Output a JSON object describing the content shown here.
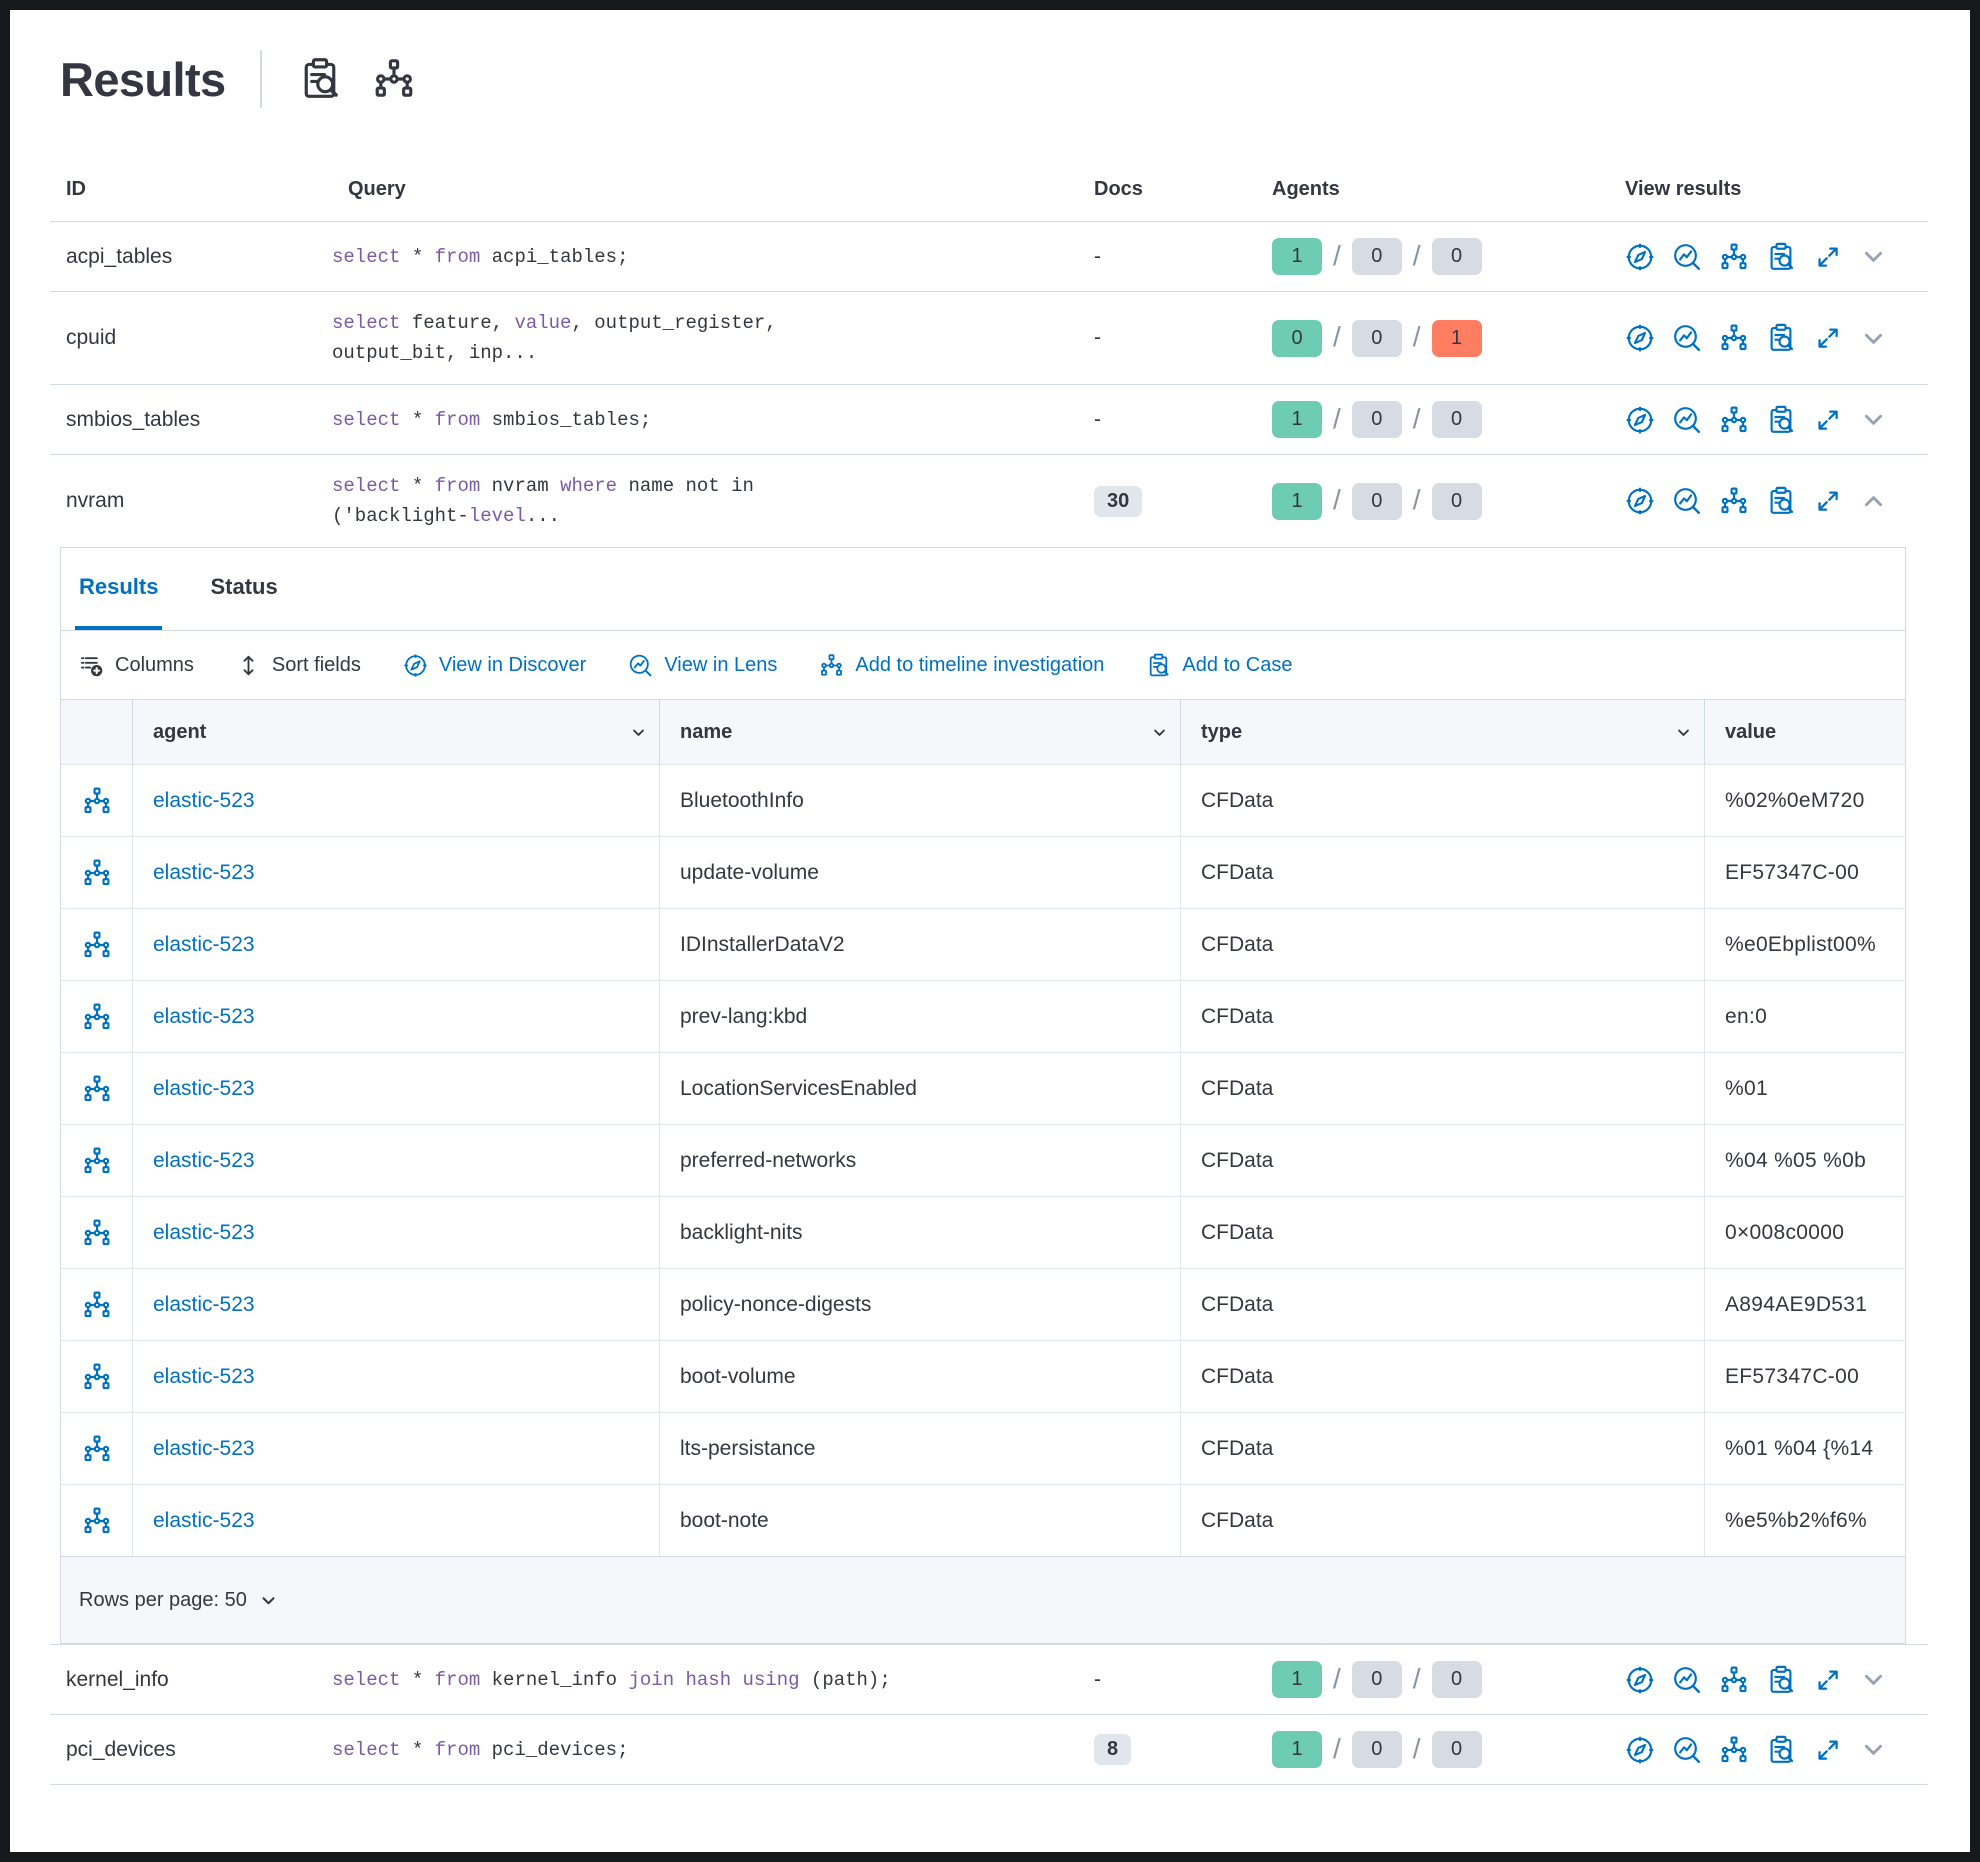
{
  "title": "Results",
  "colors": {
    "accent_blue": "#0071c2",
    "keyword_purple": "#7a5ba5",
    "badge_green": "#6dccb1",
    "badge_gray": "#d7dbe3",
    "badge_red": "#ff7e62",
    "border": "#d3dae6",
    "header_bg": "#f5f7fa",
    "text": "#343741"
  },
  "title_icons": [
    "inspect-icon",
    "timeline-icon"
  ],
  "results_table": {
    "headers": {
      "id": "ID",
      "query": "Query",
      "docs": "Docs",
      "agents": "Agents",
      "view": "View results"
    },
    "view_icons": [
      "discover-icon",
      "lens-icon",
      "timeline-icon",
      "case-icon",
      "expand-icon"
    ],
    "rows": [
      {
        "id": "acpi_tables",
        "docs": "-",
        "agents": [
          1,
          0,
          0
        ],
        "expanded": false,
        "query": [
          [
            {
              "t": "select",
              "k": true
            },
            {
              "t": " * ",
              "k": false
            },
            {
              "t": "from",
              "k": true
            },
            {
              "t": " acpi_tables;",
              "k": false
            }
          ]
        ]
      },
      {
        "id": "cpuid",
        "docs": "-",
        "agents": [
          0,
          0,
          1
        ],
        "expanded": false,
        "query": [
          [
            {
              "t": "select",
              "k": true
            },
            {
              "t": " feature, ",
              "k": false
            },
            {
              "t": "value",
              "k": true
            },
            {
              "t": ", output_register,",
              "k": false
            }
          ],
          [
            {
              "t": "output_bit, inp...",
              "k": false
            }
          ]
        ]
      },
      {
        "id": "smbios_tables",
        "docs": "-",
        "agents": [
          1,
          0,
          0
        ],
        "expanded": false,
        "query": [
          [
            {
              "t": "select",
              "k": true
            },
            {
              "t": " * ",
              "k": false
            },
            {
              "t": "from",
              "k": true
            },
            {
              "t": " smbios_tables;",
              "k": false
            }
          ]
        ]
      },
      {
        "id": "nvram",
        "docs": "30",
        "agents": [
          1,
          0,
          0
        ],
        "expanded": true,
        "query": [
          [
            {
              "t": "select",
              "k": true
            },
            {
              "t": " * ",
              "k": false
            },
            {
              "t": "from",
              "k": true
            },
            {
              "t": " nvram ",
              "k": false
            },
            {
              "t": "where",
              "k": true
            },
            {
              "t": " name not in",
              "k": false
            }
          ],
          [
            {
              "t": "('backlight-",
              "k": false
            },
            {
              "t": "level",
              "k": true
            },
            {
              "t": "...",
              "k": false
            }
          ]
        ]
      },
      {
        "id": "kernel_info",
        "docs": "-",
        "agents": [
          1,
          0,
          0
        ],
        "expanded": false,
        "query": [
          [
            {
              "t": "select",
              "k": true
            },
            {
              "t": " * ",
              "k": false
            },
            {
              "t": "from",
              "k": true
            },
            {
              "t": " kernel_info ",
              "k": false
            },
            {
              "t": "join hash using",
              "k": true
            },
            {
              "t": " (path);",
              "k": false
            }
          ]
        ]
      },
      {
        "id": "pci_devices",
        "docs": "8",
        "agents": [
          1,
          0,
          0
        ],
        "expanded": false,
        "query": [
          [
            {
              "t": "select",
              "k": true
            },
            {
              "t": " * ",
              "k": false
            },
            {
              "t": "from",
              "k": true
            },
            {
              "t": " pci_devices;",
              "k": false
            }
          ]
        ]
      }
    ]
  },
  "panel": {
    "tabs": [
      {
        "label": "Results",
        "active": true
      },
      {
        "label": "Status",
        "active": false
      }
    ],
    "toolbar": [
      {
        "label": "Columns",
        "icon": "columns-icon",
        "blue": false
      },
      {
        "label": "Sort fields",
        "icon": "sort-icon",
        "blue": false
      },
      {
        "label": "View in Discover",
        "icon": "discover-icon",
        "blue": true
      },
      {
        "label": "View in Lens",
        "icon": "lens-icon",
        "blue": true
      },
      {
        "label": "Add to timeline investigation",
        "icon": "timeline-icon",
        "blue": true
      },
      {
        "label": "Add to Case",
        "icon": "case-icon",
        "blue": true
      }
    ],
    "table": {
      "columns": [
        "agent",
        "name",
        "type",
        "value"
      ],
      "row_icon": "timeline-icon",
      "rows": [
        {
          "agent": "elastic-523",
          "name": "BluetoothInfo",
          "type": "CFData",
          "value": "%02%0eM720"
        },
        {
          "agent": "elastic-523",
          "name": "update-volume",
          "type": "CFData",
          "value": "EF57347C-00"
        },
        {
          "agent": "elastic-523",
          "name": "IDInstallerDataV2",
          "type": "CFData",
          "value": "%e0Ebplist00%"
        },
        {
          "agent": "elastic-523",
          "name": "prev-lang:kbd",
          "type": "CFData",
          "value": "en:0"
        },
        {
          "agent": "elastic-523",
          "name": "LocationServicesEnabled",
          "type": "CFData",
          "value": "%01"
        },
        {
          "agent": "elastic-523",
          "name": "preferred-networks",
          "type": "CFData",
          "value": "%04 %05 %0b"
        },
        {
          "agent": "elastic-523",
          "name": "backlight-nits",
          "type": "CFData",
          "value": "0×008c0000"
        },
        {
          "agent": "elastic-523",
          "name": "policy-nonce-digests",
          "type": "CFData",
          "value": "A894AE9D531"
        },
        {
          "agent": "elastic-523",
          "name": "boot-volume",
          "type": "CFData",
          "value": "EF57347C-00"
        },
        {
          "agent": "elastic-523",
          "name": "lts-persistance",
          "type": "CFData",
          "value": "%01 %04 {%14"
        },
        {
          "agent": "elastic-523",
          "name": "boot-note",
          "type": "CFData",
          "value": "%e5%b2%f6%"
        }
      ]
    },
    "rows_per_page_label": "Rows per page: 50"
  }
}
